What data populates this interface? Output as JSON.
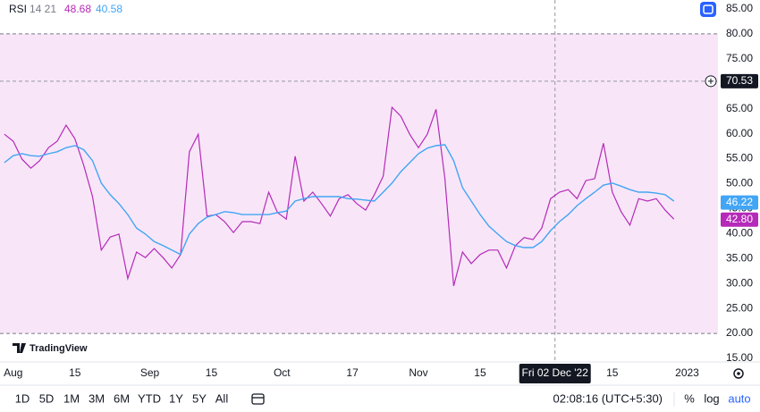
{
  "indicator": {
    "name": "RSI",
    "params": "14 21"
  },
  "logo": "TradingView",
  "toolbar": {
    "ranges": [
      "1D",
      "5D",
      "1M",
      "3M",
      "6M",
      "YTD",
      "1Y",
      "5Y",
      "All"
    ],
    "time": "02:08:16 (UTC+5:30)",
    "options": [
      "%",
      "log",
      "auto"
    ]
  },
  "chart_data": {
    "type": "line",
    "x": [
      "2022-07-30",
      "2022-08-01",
      "2022-08-03",
      "2022-08-05",
      "2022-08-07",
      "2022-08-09",
      "2022-08-11",
      "2022-08-13",
      "2022-08-15",
      "2022-08-17",
      "2022-08-19",
      "2022-08-21",
      "2022-08-23",
      "2022-08-25",
      "2022-08-27",
      "2022-08-29",
      "2022-08-31",
      "2022-09-02",
      "2022-09-04",
      "2022-09-06",
      "2022-09-08",
      "2022-09-10",
      "2022-09-12",
      "2022-09-14",
      "2022-09-16",
      "2022-09-18",
      "2022-09-20",
      "2022-09-22",
      "2022-09-24",
      "2022-09-26",
      "2022-09-28",
      "2022-09-30",
      "2022-10-02",
      "2022-10-04",
      "2022-10-06",
      "2022-10-08",
      "2022-10-10",
      "2022-10-12",
      "2022-10-14",
      "2022-10-16",
      "2022-10-18",
      "2022-10-20",
      "2022-10-22",
      "2022-10-24",
      "2022-10-26",
      "2022-10-28",
      "2022-10-30",
      "2022-11-01",
      "2022-11-03",
      "2022-11-05",
      "2022-11-07",
      "2022-11-09",
      "2022-11-11",
      "2022-11-13",
      "2022-11-15",
      "2022-11-17",
      "2022-11-19",
      "2022-11-21",
      "2022-11-23",
      "2022-11-25",
      "2022-11-27",
      "2022-11-29",
      "2022-12-01",
      "2022-12-03",
      "2022-12-05",
      "2022-12-07",
      "2022-12-09",
      "2022-12-11",
      "2022-12-13",
      "2022-12-15",
      "2022-12-17",
      "2022-12-19",
      "2022-12-21",
      "2022-12-23",
      "2022-12-25",
      "2022-12-27",
      "2022-12-29"
    ],
    "series": [
      {
        "color": "#b52ab8",
        "header_value": 48.68,
        "last_value": {
          "value": 42.8,
          "label": "42.80"
        },
        "values": [
          59.9,
          58.5,
          54.9,
          53.1,
          54.6,
          57.2,
          58.5,
          61.7,
          59.0,
          53.7,
          47.4,
          36.7,
          39.3,
          39.9,
          31.0,
          36.3,
          35.2,
          37.0,
          35.2,
          33.1,
          35.8,
          56.4,
          59.9,
          43.5,
          43.8,
          42.4,
          40.2,
          42.4,
          42.4,
          42.0,
          48.3,
          44.2,
          42.9,
          55.5,
          46.5,
          48.3,
          46.0,
          43.5,
          47.0,
          47.8,
          46.0,
          44.7,
          47.8,
          51.5,
          65.3,
          63.5,
          59.9,
          57.2,
          59.9,
          64.9,
          51.0,
          29.5,
          36.3,
          34.0,
          35.8,
          36.7,
          36.7,
          33.1,
          37.6,
          39.2,
          38.8,
          41.1,
          47.0,
          48.3,
          48.8,
          47.0,
          50.6,
          51.0,
          58.1,
          48.3,
          44.4,
          41.7,
          47.0,
          46.5,
          47.0,
          44.7,
          42.9
        ]
      },
      {
        "color": "#42a5f5",
        "header_value": 40.58,
        "last_value": {
          "value": 46.22,
          "label": "46.22"
        },
        "values": [
          54.2,
          55.6,
          56.0,
          55.6,
          55.5,
          56.0,
          56.4,
          57.2,
          57.6,
          56.8,
          54.6,
          50.1,
          47.8,
          46.0,
          43.8,
          41.1,
          39.9,
          38.4,
          37.6,
          36.7,
          35.8,
          39.9,
          42.0,
          43.3,
          43.8,
          44.4,
          44.2,
          43.8,
          43.8,
          43.8,
          43.8,
          44.2,
          44.5,
          46.5,
          47.0,
          47.4,
          47.4,
          47.4,
          47.4,
          47.0,
          46.9,
          46.7,
          46.5,
          48.3,
          50.1,
          52.4,
          54.2,
          56.0,
          57.1,
          57.6,
          57.8,
          54.6,
          49.2,
          46.5,
          43.8,
          41.5,
          39.9,
          38.4,
          37.6,
          37.2,
          37.2,
          38.4,
          40.6,
          42.4,
          43.8,
          45.6,
          47.0,
          48.3,
          49.7,
          50.1,
          49.5,
          48.8,
          48.3,
          48.3,
          48.1,
          47.8,
          46.5
        ]
      }
    ],
    "xlim": [
      "2022-07-29",
      "2023-01-08"
    ],
    "xticks": [
      {
        "value": "2022-08-01",
        "label": "Aug"
      },
      {
        "value": "2022-08-15",
        "label": "15"
      },
      {
        "value": "2022-09-01",
        "label": "Sep"
      },
      {
        "value": "2022-09-15",
        "label": "15"
      },
      {
        "value": "2022-10-01",
        "label": "Oct"
      },
      {
        "value": "2022-10-17",
        "label": "17"
      },
      {
        "value": "2022-11-01",
        "label": "Nov"
      },
      {
        "value": "2022-11-15",
        "label": "15"
      },
      {
        "value": "2022-12-15",
        "label": "15"
      },
      {
        "value": "2023-01-01",
        "label": "2023"
      }
    ],
    "ylim": [
      15,
      85
    ],
    "yticks": [
      {
        "value": 15,
        "label": "15.00"
      },
      {
        "value": 20,
        "label": "20.00"
      },
      {
        "value": 25,
        "label": "25.00"
      },
      {
        "value": 30,
        "label": "30.00"
      },
      {
        "value": 35,
        "label": "35.00"
      },
      {
        "value": 40,
        "label": "40.00"
      },
      {
        "value": 45,
        "label": "45.00"
      },
      {
        "value": 50,
        "label": "50.00"
      },
      {
        "value": 55,
        "label": "55.00"
      },
      {
        "value": 60,
        "label": "60.00"
      },
      {
        "value": 65,
        "label": "65.00"
      },
      {
        "value": 70,
        "label": "70.00"
      },
      {
        "value": 75,
        "label": "75.00"
      },
      {
        "value": 80,
        "label": "80.00"
      },
      {
        "value": 85,
        "label": "85.00"
      }
    ],
    "bands": {
      "upper": 80,
      "lower": 20,
      "color": "#f8e6f8"
    },
    "crosshair": {
      "x": {
        "value": "2022-12-02",
        "label": "Fri 02 Dec '22"
      },
      "y": 70.53
    }
  }
}
